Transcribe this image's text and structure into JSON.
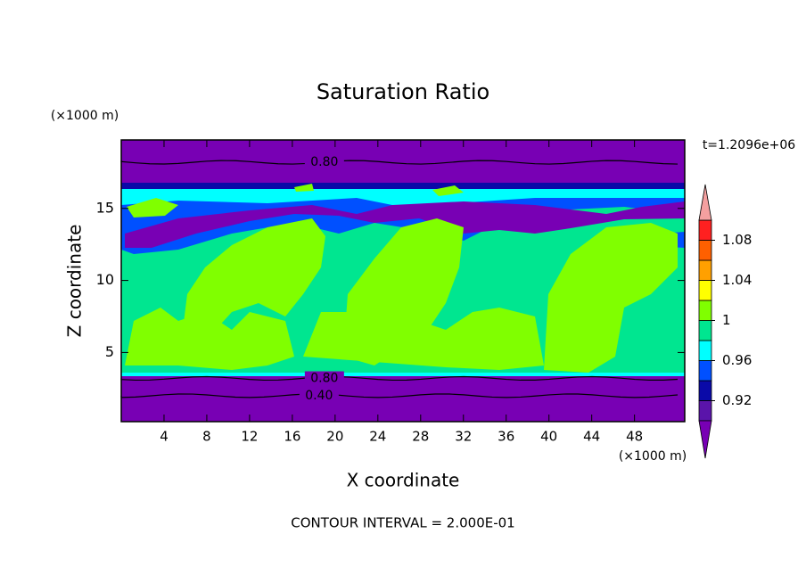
{
  "chart_data": {
    "type": "contour",
    "title": "Saturation Ratio",
    "x_label": "X coordinate",
    "y_label": "Z coordinate",
    "x_unit": "(×1000 m)",
    "y_unit": "(×1000 m)",
    "time_label": "t=1.2096e+06",
    "footer": "CONTOUR INTERVAL = 2.000E-01",
    "xlim": [
      0,
      52.7
    ],
    "xticks": [
      4,
      8,
      12,
      16,
      20,
      24,
      28,
      32,
      36,
      40,
      44,
      48
    ],
    "ylim": [
      0.2,
      19.75
    ],
    "yticks": [
      5,
      10,
      15
    ],
    "levels": [
      0.9,
      0.92,
      0.94,
      0.96,
      0.98,
      1,
      1.02,
      1.04,
      1.06,
      1.08,
      1.1
    ],
    "colors": [
      "#7800b4",
      "#5a14aa",
      "#0a0aa8",
      "#0050ff",
      "#00ffff",
      "#00e690",
      "#80ff00",
      "#ffff00",
      "#ffa000",
      "#ff6000",
      "#ff2020",
      "#f4a0a0"
    ],
    "colorbar_ticks": [
      0.92,
      0.96,
      1,
      1.04,
      1.08
    ],
    "contour_labels": [
      {
        "value": 0.8,
        "label": "0.80",
        "x": 19,
        "z": 18.2
      },
      {
        "value": 0.8,
        "label": "0.80",
        "x": 19,
        "z": 3.2
      },
      {
        "value": 0.4,
        "label": "0.40",
        "x": 18.5,
        "z": 2.0
      }
    ]
  }
}
